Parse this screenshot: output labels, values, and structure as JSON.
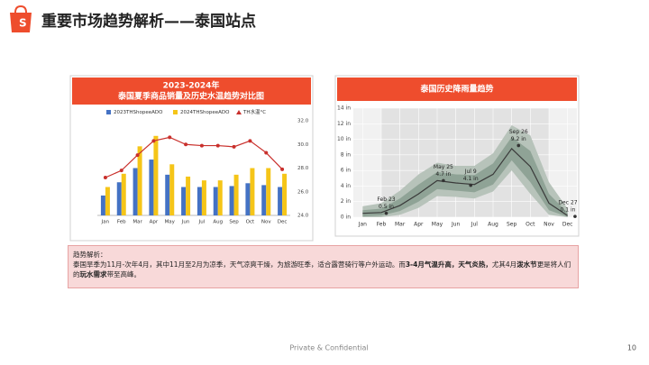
{
  "header": {
    "title": "重要市场趋势解析——泰国站点"
  },
  "chart_data": [
    {
      "type": "bar",
      "title": "2023-2024年",
      "subtitle": "泰国夏季商品销量及历史水温趋势对比图",
      "categories": [
        "Jan",
        "Feb",
        "Mar",
        "Apr",
        "May",
        "Jun",
        "Jul",
        "Aug",
        "Sep",
        "Oct",
        "Nov",
        "Dec"
      ],
      "ylim": [
        0,
        100
      ],
      "y2lim": [
        24,
        32
      ],
      "y2ticks": [
        {
          "value": 24,
          "label": "24.0"
        },
        {
          "value": 26,
          "label": "26.0"
        },
        {
          "value": 28,
          "label": "28.0"
        },
        {
          "value": 30,
          "label": "30.0"
        },
        {
          "value": 32,
          "label": "32.0"
        }
      ],
      "series": [
        {
          "name": "2023THShopeeADO",
          "type": "bar",
          "color": "#4472c4",
          "values": [
            21,
            35,
            50,
            59,
            43,
            30,
            30,
            30,
            31,
            34,
            32,
            30
          ]
        },
        {
          "name": "2024THShopeeADO",
          "type": "bar",
          "color": "#f5c518",
          "values": [
            30,
            44,
            73,
            84,
            54,
            41,
            37,
            37,
            43,
            50,
            50,
            44
          ]
        },
        {
          "name": "TH水温°C",
          "type": "line",
          "axis": "y2",
          "color": "#c9302c",
          "values": [
            27.2,
            27.8,
            29.1,
            30.3,
            30.6,
            30.0,
            29.9,
            29.9,
            29.8,
            30.3,
            29.3,
            27.9
          ]
        }
      ]
    },
    {
      "type": "area",
      "title": "泰国历史降雨量趋势",
      "categories": [
        "Jan",
        "Feb",
        "Mar",
        "Apr",
        "May",
        "Jun",
        "Jul",
        "Aug",
        "Sep",
        "Oct",
        "Nov",
        "Dec"
      ],
      "ylim": [
        0,
        14
      ],
      "yticks": [
        {
          "value": 0,
          "label": "0 in"
        },
        {
          "value": 2,
          "label": "2 in"
        },
        {
          "value": 4,
          "label": "4 in"
        },
        {
          "value": 6,
          "label": "6 in"
        },
        {
          "value": 8,
          "label": "8 in"
        },
        {
          "value": 10,
          "label": "10 in"
        },
        {
          "value": 12,
          "label": "12 in"
        },
        {
          "value": 14,
          "label": "14 in"
        }
      ],
      "grid": true,
      "bands": [
        {
          "color": "#b7c3ba",
          "lower": [
            0,
            0,
            0.3,
            1.2,
            2.7,
            2.6,
            2.4,
            3.3,
            6,
            3,
            0.3,
            0
          ],
          "upper": [
            1.4,
            1.8,
            3.4,
            5.5,
            7,
            6.6,
            6.6,
            8.2,
            11.8,
            10.5,
            4.5,
            1.1
          ]
        },
        {
          "color": "#8fa396",
          "lower": [
            0.1,
            0.2,
            0.8,
            2,
            3.6,
            3.4,
            3.2,
            4.2,
            7.3,
            4.5,
            0.9,
            0.05
          ],
          "upper": [
            0.9,
            1.1,
            2.4,
            4.2,
            5.8,
            5.5,
            5.4,
            6.9,
            10.3,
            8.5,
            3,
            0.6
          ]
        }
      ],
      "series": [
        {
          "color": "#3a3a3a",
          "values": [
            0.5,
            0.6,
            1.5,
            3,
            4.7,
            4.4,
            4.2,
            5.5,
            8.8,
            6.5,
            1.8,
            0.2
          ]
        }
      ],
      "annotations": [
        {
          "x": "Feb 23",
          "value": 0.5,
          "label": "0.5 in"
        },
        {
          "x": "May 25",
          "value": 4.7,
          "label": "4.7 in"
        },
        {
          "x": "Jul 9",
          "value": 4.1,
          "label": "4.1 in"
        },
        {
          "x": "Sep 26",
          "value": 9.2,
          "label": "9.2 in"
        },
        {
          "x": "Dec 27",
          "value": 0.1,
          "label": "0.1 in"
        }
      ]
    }
  ],
  "note": {
    "heading": "趋势解析：",
    "segments": [
      {
        "text": "泰国旱季为11月-次年4月，其中11月至2月为凉季，天气凉爽干燥，为旅游旺季，适合露营骑行等户外运动。而",
        "bold": false
      },
      {
        "text": "3-4月气温升高，天气炎热，",
        "bold": true
      },
      {
        "text": "尤其4月",
        "bold": false
      },
      {
        "text": "泼水节",
        "bold": true
      },
      {
        "text": "更是将人们的",
        "bold": false
      },
      {
        "text": "玩水需求",
        "bold": true
      },
      {
        "text": "带至高峰。",
        "bold": false
      }
    ]
  },
  "footer": {
    "text": "Private & Confidential",
    "page": "10"
  }
}
